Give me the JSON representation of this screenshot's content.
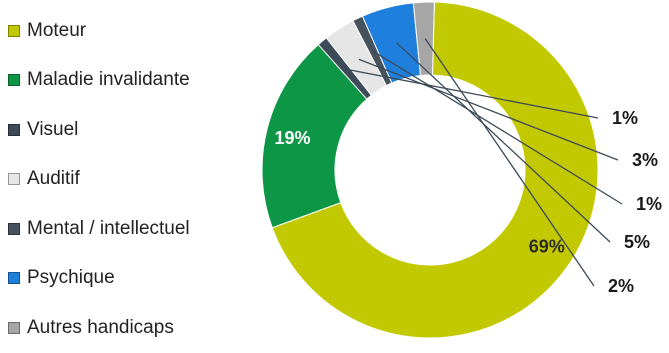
{
  "chart_data": {
    "type": "pie",
    "donut": true,
    "title": "",
    "legend_position": "left",
    "categories": [
      "Moteur",
      "Maladie invalidante",
      "Visuel",
      "Auditif",
      "Mental / intellectuel",
      "Psychique",
      "Autres handicaps"
    ],
    "values": [
      69,
      19,
      1,
      3,
      1,
      5,
      2
    ],
    "labels": [
      "69%",
      "19%",
      "1%",
      "3%",
      "1%",
      "5%",
      "2%"
    ],
    "colors": [
      "#c3c900",
      "#0d9646",
      "#3d4a57",
      "#e6e6e6",
      "#46525d",
      "#1f7fdd",
      "#a6a6a6"
    ]
  }
}
